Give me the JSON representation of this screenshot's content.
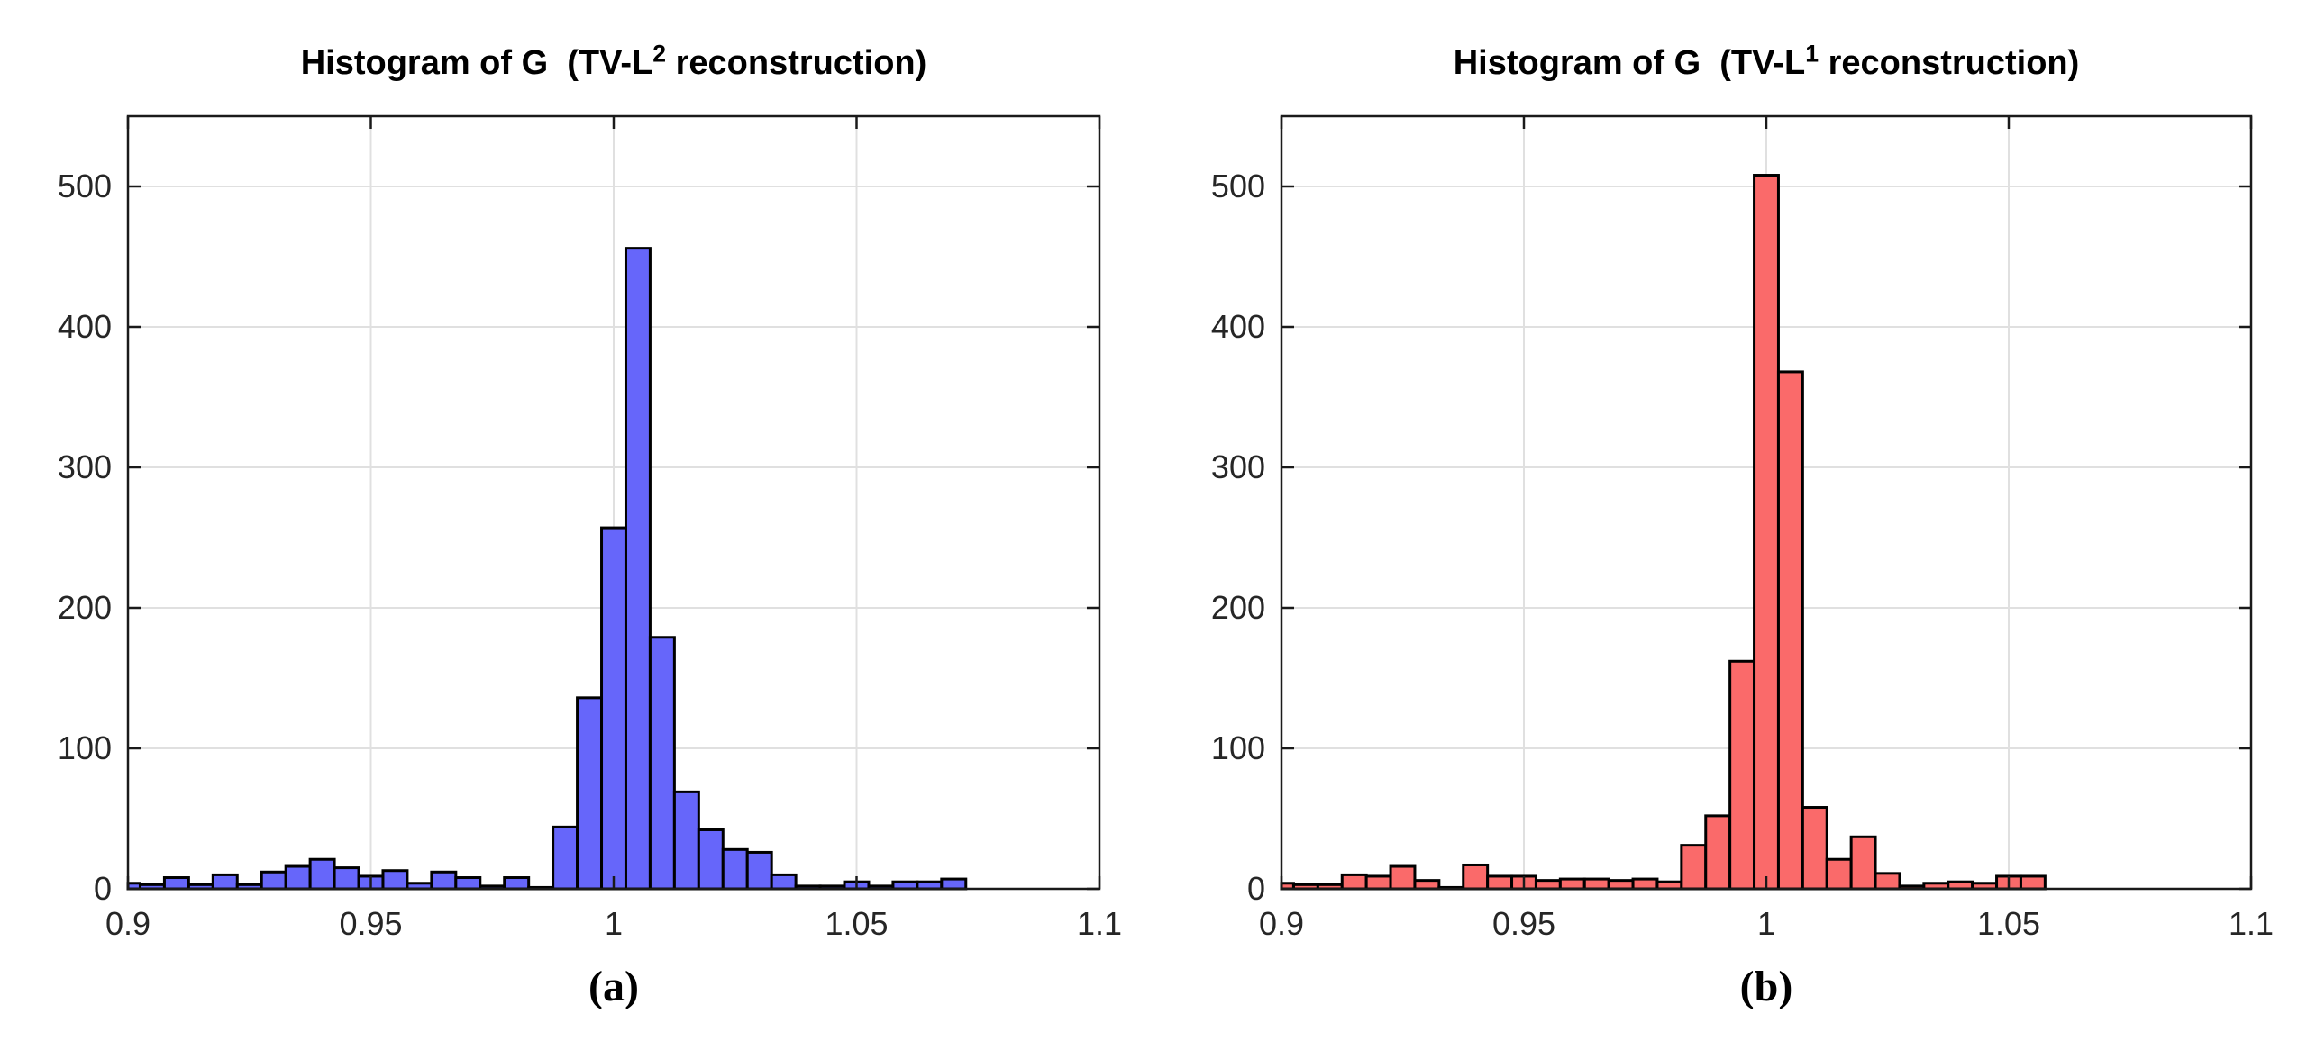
{
  "figure": {
    "background": "#ffffff",
    "axis_color": "#1a1a1a",
    "grid_color": "#e0e0e0",
    "tick_label_color": "#262626"
  },
  "chart_data": [
    {
      "type": "bar",
      "title": "Histogram of G  (TV-L^2 reconstruction)",
      "title_parts": {
        "prefix": "Histogram of G  (TV-L",
        "sup": "2",
        "suffix": " reconstruction)"
      },
      "caption": "(a)",
      "xlabel": "",
      "ylabel": "",
      "xlim": [
        0.9,
        1.1
      ],
      "ylim": [
        0,
        550
      ],
      "grid": true,
      "legend": null,
      "bar_color": "#6666fa",
      "edge_color": "#000000",
      "bin_width": 0.005,
      "bin_centers_from": 0.9,
      "bin_centers_to": 1.1,
      "counts": [
        4,
        3,
        8,
        3,
        10,
        3,
        12,
        16,
        21,
        15,
        9,
        13,
        4,
        12,
        8,
        2,
        8,
        1,
        44,
        136,
        257,
        456,
        179,
        69,
        42,
        28,
        26,
        10,
        2,
        2,
        5,
        2,
        5,
        5,
        7,
        0,
        0,
        0,
        0,
        0,
        0
      ],
      "x_tick_values": [
        0.9,
        0.95,
        1.0,
        1.05,
        1.1
      ],
      "x_tick_labels": [
        "0.9",
        "0.95",
        "1",
        "1.05",
        "1.1"
      ],
      "y_tick_values": [
        0,
        100,
        200,
        300,
        400,
        500
      ],
      "y_tick_labels": [
        "0",
        "100",
        "200",
        "300",
        "400",
        "500"
      ]
    },
    {
      "type": "bar",
      "title": "Histogram of G  (TV-L^1 reconstruction)",
      "title_parts": {
        "prefix": "Histogram of G  (TV-L",
        "sup": "1",
        "suffix": " reconstruction)"
      },
      "caption": "(b)",
      "xlabel": "",
      "ylabel": "",
      "xlim": [
        0.9,
        1.1
      ],
      "ylim": [
        0,
        550
      ],
      "grid": true,
      "legend": null,
      "bar_color": "#fa6a6a",
      "edge_color": "#000000",
      "bin_width": 0.005,
      "bin_centers_from": 0.9,
      "bin_centers_to": 1.1,
      "counts": [
        4,
        3,
        3,
        10,
        9,
        16,
        6,
        1,
        17,
        9,
        9,
        6,
        7,
        7,
        6,
        7,
        5,
        31,
        52,
        162,
        508,
        368,
        58,
        21,
        37,
        11,
        2,
        4,
        5,
        4,
        9,
        9,
        0,
        0,
        0,
        0,
        0,
        0,
        0,
        0,
        0
      ],
      "x_tick_values": [
        0.9,
        0.95,
        1.0,
        1.05,
        1.1
      ],
      "x_tick_labels": [
        "0.9",
        "0.95",
        "1",
        "1.05",
        "1.1"
      ],
      "y_tick_values": [
        0,
        100,
        200,
        300,
        400,
        500
      ],
      "y_tick_labels": [
        "0",
        "100",
        "200",
        "300",
        "400",
        "500"
      ]
    }
  ]
}
